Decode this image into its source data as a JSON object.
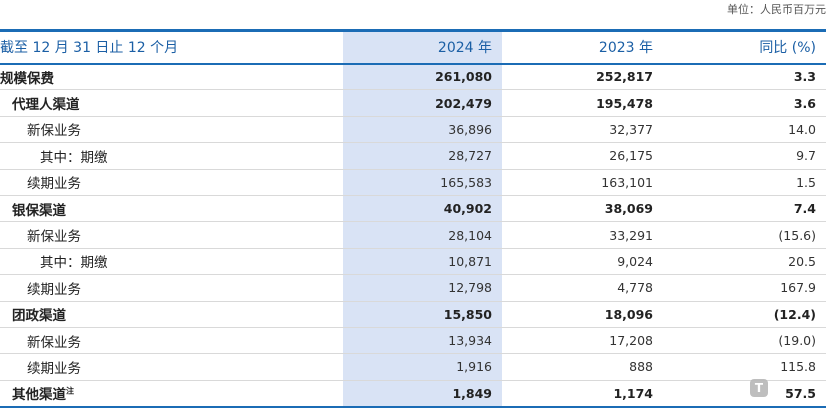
{
  "unit_note": "单位：人民币百万元",
  "header": {
    "label": "截至 12 月 31 日止 12 个月",
    "col1": "2024 年",
    "col2": "2023 年",
    "col3": "同比 (%)"
  },
  "rows": [
    {
      "label": "规模保费",
      "v2024": "261,080",
      "v2023": "252,817",
      "yoy": "3.3"
    },
    {
      "label": "代理人渠道",
      "v2024": "202,479",
      "v2023": "195,478",
      "yoy": "3.6"
    },
    {
      "label": "新保业务",
      "v2024": "36,896",
      "v2023": "32,377",
      "yoy": "14.0"
    },
    {
      "label": "其中：期缴",
      "v2024": "28,727",
      "v2023": "26,175",
      "yoy": "9.7"
    },
    {
      "label": "续期业务",
      "v2024": "165,583",
      "v2023": "163,101",
      "yoy": "1.5"
    },
    {
      "label": "银保渠道",
      "v2024": "40,902",
      "v2023": "38,069",
      "yoy": "7.4"
    },
    {
      "label": "新保业务",
      "v2024": "28,104",
      "v2023": "33,291",
      "yoy": "(15.6)"
    },
    {
      "label": "其中：期缴",
      "v2024": "10,871",
      "v2023": "9,024",
      "yoy": "20.5"
    },
    {
      "label": "续期业务",
      "v2024": "12,798",
      "v2023": "4,778",
      "yoy": "167.9"
    },
    {
      "label": "团政渠道",
      "v2024": "15,850",
      "v2023": "18,096",
      "yoy": "(12.4)"
    },
    {
      "label": "新保业务",
      "v2024": "13,934",
      "v2023": "17,208",
      "yoy": "(19.0)"
    },
    {
      "label": "续期业务",
      "v2024": "1,916",
      "v2023": "888",
      "yoy": "115.8"
    },
    {
      "label": "其他渠道",
      "label_sup": "注",
      "v2024": "1,849",
      "v2023": "1,174",
      "yoy": "57.5"
    }
  ],
  "colors": {
    "accent": "#1b6cb5",
    "highlight_column": "#d9e3f5"
  }
}
